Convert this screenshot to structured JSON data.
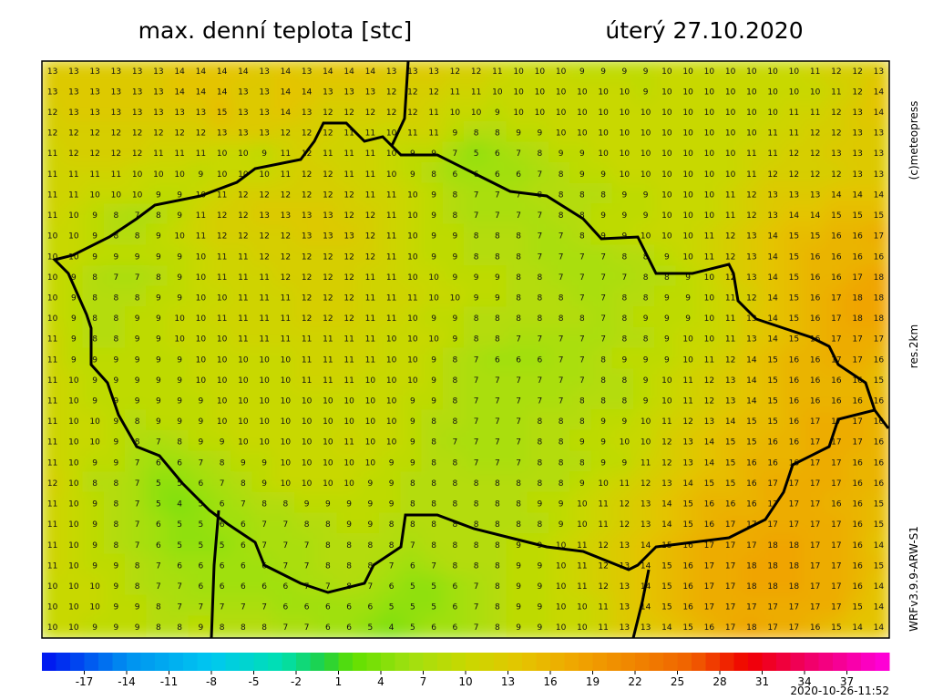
{
  "header": {
    "title": "max. denní teplota [stc]",
    "date": "úterý 27.10.2020"
  },
  "side": {
    "copyright": "(c)meteopress",
    "resolution": "res.2km",
    "model": "WRFv3.9.9-ARW-S1"
  },
  "timestamp": "2020-10-26-11:52",
  "colorbar": {
    "range": [
      -20,
      40
    ],
    "ticks": [
      -17,
      -14,
      -11,
      -8,
      -5,
      -2,
      1,
      4,
      7,
      10,
      13,
      16,
      19,
      22,
      25,
      28,
      31,
      34,
      37
    ],
    "colors": [
      [
        -20,
        "#0010f0"
      ],
      [
        -14,
        "#0090f0"
      ],
      [
        -8,
        "#00c8f0"
      ],
      [
        -3,
        "#00e0b0"
      ],
      [
        0,
        "#20d040"
      ],
      [
        2,
        "#60e000"
      ],
      [
        6,
        "#a0e010"
      ],
      [
        10,
        "#c8d800"
      ],
      [
        14,
        "#e4c400"
      ],
      [
        18,
        "#f0a400"
      ],
      [
        22,
        "#f08400"
      ],
      [
        26,
        "#f06000"
      ],
      [
        30,
        "#f00000"
      ],
      [
        34,
        "#f00060"
      ],
      [
        40,
        "#ff00e0"
      ]
    ]
  },
  "grid": [
    [
      13,
      13,
      13,
      13,
      13,
      13,
      14,
      14,
      14,
      14,
      13,
      14,
      13,
      14,
      14,
      14,
      13,
      13,
      13,
      12,
      12,
      11,
      10,
      10,
      10,
      9,
      9,
      9,
      9,
      10,
      10,
      10,
      10,
      10,
      10,
      10,
      11,
      12,
      12,
      13
    ],
    [
      13,
      13,
      13,
      13,
      13,
      13,
      14,
      14,
      14,
      13,
      13,
      14,
      14,
      13,
      13,
      13,
      12,
      12,
      12,
      11,
      11,
      10,
      10,
      10,
      10,
      10,
      10,
      10,
      9,
      10,
      10,
      10,
      10,
      10,
      10,
      10,
      10,
      11,
      12,
      14
    ],
    [
      12,
      13,
      13,
      13,
      13,
      13,
      13,
      13,
      15,
      13,
      13,
      14,
      13,
      12,
      12,
      12,
      12,
      12,
      11,
      10,
      10,
      9,
      10,
      10,
      10,
      10,
      10,
      10,
      10,
      10,
      10,
      10,
      10,
      10,
      10,
      11,
      11,
      12,
      13,
      14
    ],
    [
      12,
      12,
      12,
      12,
      12,
      12,
      12,
      12,
      13,
      13,
      13,
      12,
      12,
      12,
      11,
      11,
      10,
      11,
      11,
      9,
      8,
      8,
      9,
      9,
      10,
      10,
      10,
      10,
      10,
      10,
      10,
      10,
      10,
      10,
      11,
      11,
      12,
      12,
      13,
      13
    ],
    [
      11,
      12,
      12,
      12,
      12,
      11,
      11,
      11,
      10,
      10,
      9,
      11,
      12,
      11,
      11,
      11,
      10,
      9,
      9,
      7,
      5,
      6,
      7,
      8,
      9,
      9,
      10,
      10,
      10,
      10,
      10,
      10,
      10,
      11,
      11,
      12,
      12,
      13,
      13,
      13
    ],
    [
      11,
      11,
      11,
      11,
      10,
      10,
      10,
      9,
      10,
      10,
      10,
      11,
      12,
      12,
      11,
      11,
      10,
      9,
      8,
      6,
      6,
      6,
      6,
      7,
      8,
      9,
      9,
      10,
      10,
      10,
      10,
      10,
      10,
      11,
      12,
      12,
      12,
      12,
      13,
      13
    ],
    [
      11,
      11,
      10,
      10,
      10,
      9,
      9,
      10,
      11,
      12,
      12,
      12,
      12,
      12,
      12,
      11,
      11,
      10,
      9,
      8,
      7,
      7,
      7,
      8,
      8,
      8,
      8,
      9,
      9,
      10,
      10,
      10,
      11,
      12,
      13,
      13,
      13,
      14,
      14,
      14
    ],
    [
      11,
      10,
      9,
      8,
      7,
      8,
      9,
      11,
      12,
      12,
      13,
      13,
      13,
      13,
      12,
      12,
      11,
      10,
      9,
      8,
      7,
      7,
      7,
      7,
      8,
      8,
      9,
      9,
      9,
      10,
      10,
      10,
      11,
      12,
      13,
      14,
      14,
      15,
      15,
      15
    ],
    [
      10,
      10,
      9,
      8,
      8,
      9,
      10,
      11,
      12,
      12,
      12,
      12,
      13,
      13,
      13,
      12,
      11,
      10,
      9,
      9,
      8,
      8,
      8,
      7,
      7,
      8,
      9,
      9,
      10,
      10,
      10,
      11,
      12,
      13,
      14,
      15,
      15,
      16,
      16,
      17
    ],
    [
      10,
      10,
      9,
      9,
      9,
      9,
      9,
      10,
      11,
      11,
      12,
      12,
      12,
      12,
      12,
      12,
      11,
      10,
      9,
      9,
      8,
      8,
      8,
      7,
      7,
      7,
      7,
      8,
      8,
      9,
      10,
      11,
      12,
      13,
      14,
      15,
      16,
      16,
      16,
      16
    ],
    [
      10,
      9,
      8,
      7,
      7,
      8,
      9,
      10,
      11,
      11,
      11,
      12,
      12,
      12,
      12,
      11,
      11,
      10,
      10,
      9,
      9,
      9,
      8,
      8,
      7,
      7,
      7,
      7,
      8,
      8,
      9,
      10,
      12,
      13,
      14,
      15,
      16,
      16,
      17,
      18
    ],
    [
      10,
      9,
      8,
      8,
      8,
      9,
      9,
      10,
      10,
      11,
      11,
      11,
      12,
      12,
      12,
      11,
      11,
      11,
      10,
      10,
      9,
      9,
      8,
      8,
      8,
      7,
      7,
      8,
      8,
      9,
      9,
      10,
      11,
      12,
      14,
      15,
      16,
      17,
      18,
      18
    ],
    [
      10,
      9,
      8,
      8,
      9,
      9,
      10,
      10,
      11,
      11,
      11,
      11,
      12,
      12,
      12,
      11,
      11,
      10,
      9,
      9,
      8,
      8,
      8,
      8,
      8,
      8,
      7,
      8,
      9,
      9,
      9,
      10,
      11,
      13,
      14,
      15,
      16,
      17,
      18,
      18
    ],
    [
      11,
      9,
      8,
      8,
      9,
      9,
      10,
      10,
      10,
      11,
      11,
      11,
      11,
      11,
      11,
      11,
      10,
      10,
      10,
      9,
      8,
      8,
      7,
      7,
      7,
      7,
      7,
      8,
      8,
      9,
      10,
      10,
      11,
      13,
      14,
      15,
      16,
      17,
      17,
      17
    ],
    [
      11,
      9,
      9,
      9,
      9,
      9,
      9,
      10,
      10,
      10,
      10,
      10,
      11,
      11,
      11,
      11,
      10,
      10,
      9,
      8,
      7,
      6,
      6,
      6,
      7,
      7,
      8,
      9,
      9,
      9,
      10,
      11,
      12,
      14,
      15,
      16,
      16,
      17,
      17,
      16
    ],
    [
      11,
      10,
      9,
      9,
      9,
      9,
      9,
      10,
      10,
      10,
      10,
      10,
      11,
      11,
      11,
      10,
      10,
      10,
      9,
      8,
      7,
      7,
      7,
      7,
      7,
      7,
      8,
      8,
      9,
      10,
      11,
      12,
      13,
      14,
      15,
      16,
      16,
      16,
      16,
      15
    ],
    [
      11,
      10,
      9,
      9,
      9,
      9,
      9,
      9,
      10,
      10,
      10,
      10,
      10,
      10,
      10,
      10,
      10,
      9,
      9,
      8,
      7,
      7,
      7,
      7,
      7,
      8,
      8,
      8,
      9,
      10,
      11,
      12,
      13,
      14,
      15,
      16,
      16,
      16,
      16,
      16
    ],
    [
      11,
      10,
      10,
      9,
      8,
      9,
      9,
      9,
      10,
      10,
      10,
      10,
      10,
      10,
      10,
      10,
      10,
      9,
      8,
      8,
      7,
      7,
      7,
      8,
      8,
      8,
      9,
      9,
      10,
      11,
      12,
      13,
      14,
      15,
      15,
      16,
      17,
      17,
      17,
      16
    ],
    [
      11,
      10,
      10,
      9,
      8,
      7,
      8,
      9,
      9,
      10,
      10,
      10,
      10,
      10,
      11,
      10,
      10,
      9,
      8,
      7,
      7,
      7,
      7,
      8,
      8,
      9,
      9,
      10,
      10,
      12,
      13,
      14,
      15,
      15,
      16,
      16,
      17,
      17,
      17,
      16
    ],
    [
      11,
      10,
      9,
      9,
      7,
      6,
      6,
      7,
      8,
      9,
      9,
      10,
      10,
      10,
      10,
      10,
      9,
      9,
      8,
      8,
      7,
      7,
      7,
      8,
      8,
      8,
      9,
      9,
      11,
      12,
      13,
      14,
      15,
      16,
      16,
      16,
      17,
      17,
      16,
      16
    ],
    [
      12,
      10,
      8,
      8,
      7,
      5,
      5,
      6,
      7,
      8,
      9,
      10,
      10,
      10,
      10,
      9,
      9,
      8,
      8,
      8,
      8,
      8,
      8,
      8,
      8,
      9,
      10,
      11,
      12,
      13,
      14,
      15,
      15,
      16,
      17,
      17,
      17,
      17,
      16,
      16
    ],
    [
      11,
      10,
      9,
      8,
      7,
      5,
      4,
      5,
      6,
      7,
      8,
      8,
      9,
      9,
      9,
      9,
      9,
      8,
      8,
      8,
      8,
      8,
      8,
      9,
      9,
      10,
      11,
      12,
      13,
      14,
      15,
      16,
      16,
      16,
      17,
      17,
      17,
      16,
      16,
      15
    ],
    [
      11,
      10,
      9,
      8,
      7,
      6,
      5,
      5,
      6,
      6,
      7,
      7,
      8,
      8,
      9,
      9,
      8,
      8,
      8,
      8,
      8,
      8,
      8,
      8,
      9,
      10,
      11,
      12,
      13,
      14,
      15,
      16,
      17,
      17,
      17,
      17,
      17,
      17,
      16,
      15
    ],
    [
      11,
      10,
      9,
      8,
      7,
      6,
      5,
      5,
      5,
      6,
      7,
      7,
      7,
      8,
      8,
      8,
      8,
      7,
      8,
      8,
      8,
      8,
      9,
      9,
      10,
      11,
      12,
      13,
      14,
      15,
      16,
      17,
      17,
      17,
      18,
      18,
      17,
      17,
      16,
      14
    ],
    [
      11,
      10,
      9,
      9,
      8,
      7,
      6,
      6,
      6,
      6,
      6,
      7,
      7,
      8,
      8,
      8,
      7,
      6,
      7,
      8,
      8,
      8,
      9,
      9,
      10,
      11,
      12,
      13,
      14,
      15,
      16,
      17,
      17,
      18,
      18,
      18,
      17,
      17,
      16,
      15
    ],
    [
      10,
      10,
      10,
      9,
      8,
      7,
      7,
      6,
      6,
      6,
      6,
      6,
      7,
      7,
      8,
      7,
      6,
      5,
      5,
      6,
      7,
      8,
      9,
      9,
      10,
      11,
      12,
      13,
      14,
      15,
      16,
      17,
      17,
      18,
      18,
      18,
      17,
      17,
      16,
      14
    ],
    [
      10,
      10,
      10,
      9,
      9,
      8,
      7,
      7,
      7,
      7,
      7,
      6,
      6,
      6,
      6,
      6,
      5,
      5,
      5,
      6,
      7,
      8,
      9,
      9,
      10,
      10,
      11,
      13,
      14,
      15,
      16,
      17,
      17,
      17,
      17,
      17,
      17,
      17,
      15,
      14
    ],
    [
      10,
      10,
      9,
      9,
      9,
      8,
      8,
      9,
      8,
      8,
      8,
      7,
      7,
      6,
      6,
      5,
      4,
      5,
      6,
      6,
      7,
      8,
      9,
      9,
      10,
      10,
      11,
      13,
      13,
      14,
      15,
      16,
      17,
      18,
      17,
      17,
      16,
      15,
      14,
      14
    ]
  ]
}
